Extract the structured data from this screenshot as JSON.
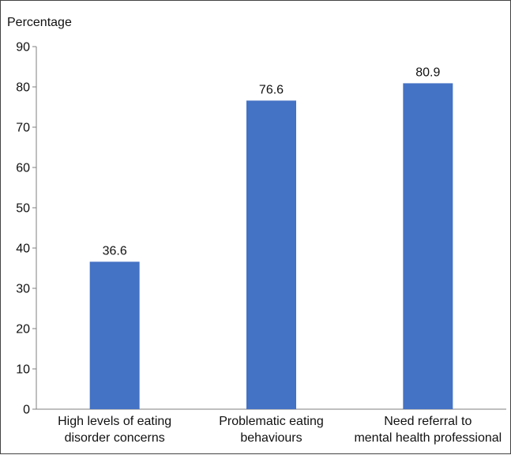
{
  "chart_data": {
    "type": "bar",
    "ylabel": "Percentage",
    "categories": [
      [
        "High levels of eating",
        "disorder concerns"
      ],
      [
        "Problematic eating",
        "behaviours"
      ],
      [
        "Need referral to",
        "mental health professional"
      ]
    ],
    "values": [
      36.6,
      76.6,
      80.9
    ],
    "data_labels": [
      "36.6",
      "76.6",
      "80.9"
    ],
    "ylim": [
      0,
      90
    ],
    "yticks": [
      0,
      10,
      20,
      30,
      40,
      50,
      60,
      70,
      80,
      90
    ],
    "grid": false,
    "legend": "none",
    "bar_color": "#4472C4",
    "axis_color": "#7f7f7f"
  }
}
